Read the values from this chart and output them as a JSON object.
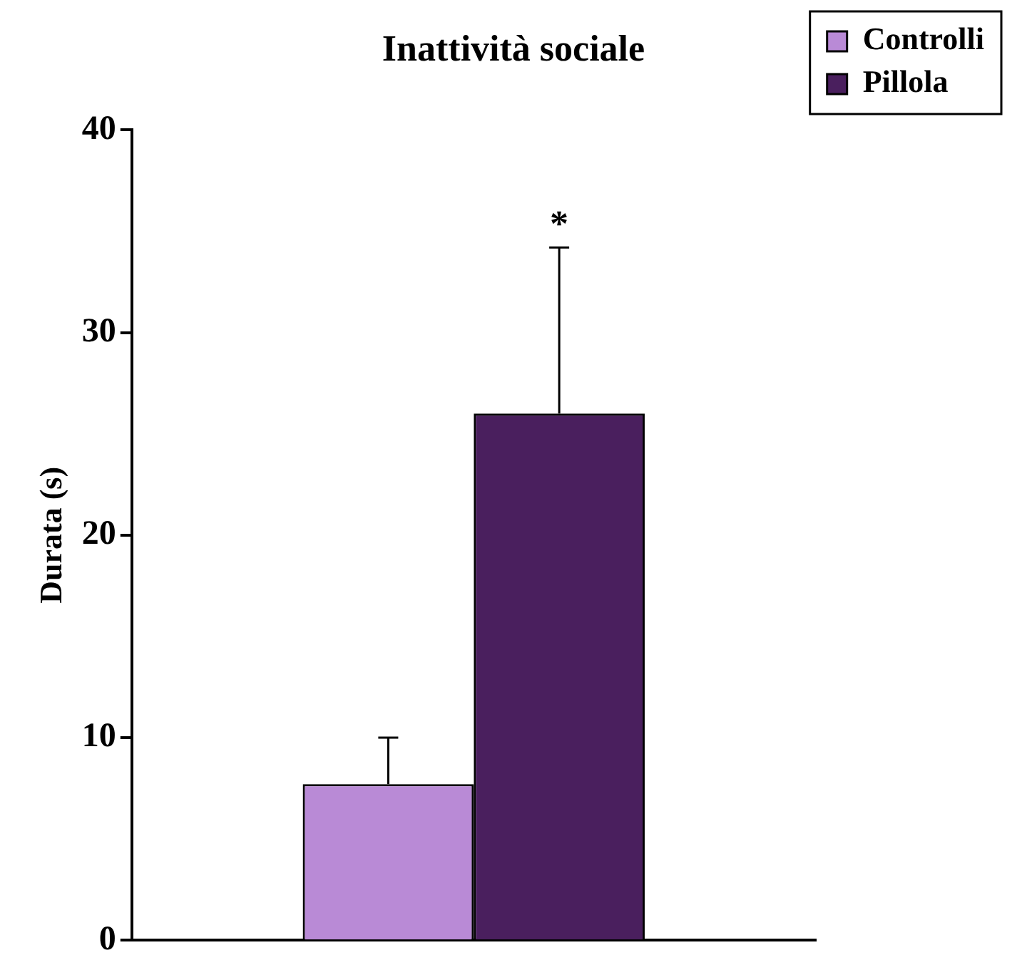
{
  "chart_data": {
    "type": "bar",
    "title": "Inattività sociale",
    "ylabel": "Durata (s)",
    "categories": [
      null
    ],
    "series": [
      {
        "name": "Controlli",
        "color": "#b98ad6",
        "values": [
          7.7
        ],
        "errors": [
          [
            7.7,
            10
          ]
        ]
      },
      {
        "name": "Pillola",
        "color": "#4a1f5e",
        "values": [
          26
        ],
        "errors": [
          [
            26,
            34.2
          ]
        ]
      }
    ],
    "ylim": [
      0,
      40
    ],
    "yticks": [
      0,
      10,
      20,
      30,
      40
    ],
    "grid": false,
    "legend": "top right",
    "annotations": [
      "*"
    ]
  }
}
